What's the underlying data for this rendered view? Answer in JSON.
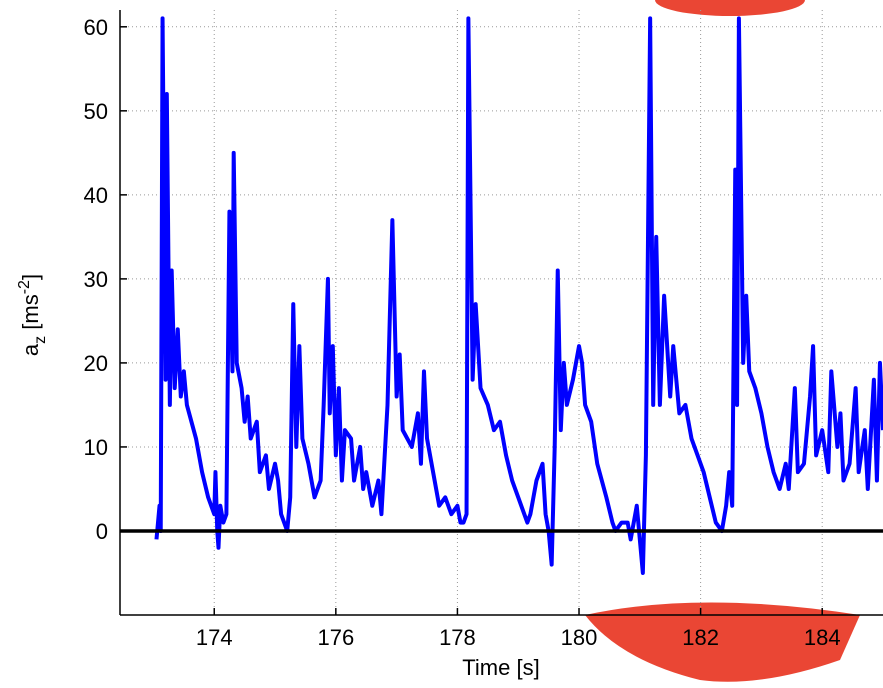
{
  "chart_data": {
    "type": "line",
    "xlabel": "Time [s]",
    "ylabel_parts": [
      "a",
      "z",
      " [ms",
      "-2",
      "]"
    ],
    "xlim": [
      172.45,
      185
    ],
    "ylim": [
      -10,
      62
    ],
    "xticks": [
      174,
      176,
      178,
      180,
      182,
      184
    ],
    "yticks": [
      0,
      10,
      20,
      30,
      40,
      50,
      60
    ],
    "grid": true,
    "reference_line": 0,
    "x": [
      173.05,
      173.1,
      173.12,
      173.15,
      173.2,
      173.22,
      173.27,
      173.3,
      173.35,
      173.4,
      173.45,
      173.5,
      173.55,
      173.7,
      173.8,
      173.9,
      174.0,
      174.02,
      174.05,
      174.07,
      174.1,
      174.15,
      174.2,
      174.25,
      174.3,
      174.32,
      174.37,
      174.45,
      174.5,
      174.55,
      174.6,
      174.7,
      174.75,
      174.85,
      174.9,
      175.0,
      175.05,
      175.1,
      175.2,
      175.25,
      175.3,
      175.35,
      175.4,
      175.45,
      175.55,
      175.65,
      175.75,
      175.8,
      175.87,
      175.9,
      175.95,
      176.0,
      176.05,
      176.1,
      176.15,
      176.25,
      176.3,
      176.4,
      176.45,
      176.5,
      176.6,
      176.7,
      176.75,
      176.85,
      176.93,
      177.0,
      177.05,
      177.1,
      177.25,
      177.35,
      177.4,
      177.45,
      177.5,
      177.6,
      177.7,
      177.8,
      177.9,
      178.0,
      178.05,
      178.1,
      178.15,
      178.18,
      178.25,
      178.3,
      178.38,
      178.5,
      178.6,
      178.7,
      178.8,
      178.9,
      179.0,
      179.1,
      179.15,
      179.2,
      179.3,
      179.4,
      179.45,
      179.5,
      179.55,
      179.6,
      179.65,
      179.7,
      179.75,
      179.8,
      179.9,
      180.0,
      180.05,
      180.1,
      180.2,
      180.3,
      180.45,
      180.55,
      180.6,
      180.7,
      180.8,
      180.85,
      180.95,
      181.05,
      181.1,
      181.17,
      181.22,
      181.27,
      181.33,
      181.4,
      181.5,
      181.55,
      181.65,
      181.75,
      181.85,
      181.95,
      182.05,
      182.15,
      182.25,
      182.35,
      182.42,
      182.47,
      182.52,
      182.57,
      182.6,
      182.63,
      182.7,
      182.75,
      182.8,
      182.9,
      183.0,
      183.1,
      183.2,
      183.3,
      183.4,
      183.45,
      183.55,
      183.6,
      183.7,
      183.8,
      183.85,
      183.9,
      184.0,
      184.1,
      184.15,
      184.25,
      184.3,
      184.35,
      184.45,
      184.55,
      184.6,
      184.7,
      184.75,
      184.85,
      184.9,
      184.95,
      185.0
    ],
    "series": [
      {
        "color": "#0000ff",
        "values": [
          -1,
          3,
          0,
          61,
          18,
          52,
          15,
          31,
          17,
          24,
          16,
          19,
          15,
          11,
          7,
          4,
          2,
          7,
          0,
          -2,
          3,
          1,
          2,
          38,
          19,
          45,
          20,
          17,
          13,
          16,
          11,
          13,
          7,
          9,
          5,
          8,
          6,
          2,
          0,
          4,
          27,
          10,
          22,
          11,
          8,
          4,
          6,
          15,
          30,
          14,
          22,
          9,
          17,
          6,
          12,
          11,
          6,
          10,
          5,
          7,
          3,
          6,
          2,
          15,
          37,
          16,
          21,
          12,
          10,
          14,
          8,
          19,
          11,
          7,
          3,
          4,
          2,
          3,
          1,
          1,
          2,
          61,
          18,
          27,
          17,
          15,
          12,
          13,
          9,
          6,
          4,
          2,
          1,
          2,
          6,
          8,
          2,
          0,
          -4,
          10,
          31,
          12,
          20,
          15,
          18,
          22,
          20,
          15,
          13,
          8,
          4,
          1,
          0,
          1,
          1,
          -1,
          3,
          -5,
          9,
          61,
          15,
          35,
          15,
          28,
          16,
          22,
          14,
          15,
          11,
          9,
          7,
          4,
          1,
          0,
          3,
          7,
          3,
          43,
          15,
          61,
          20,
          28,
          19,
          17,
          14,
          10,
          7,
          5,
          8,
          5,
          17,
          7,
          8,
          16,
          22,
          9,
          12,
          7,
          19,
          10,
          14,
          6,
          8,
          17,
          7,
          12,
          5,
          18,
          6,
          20,
          12
        ]
      }
    ]
  }
}
